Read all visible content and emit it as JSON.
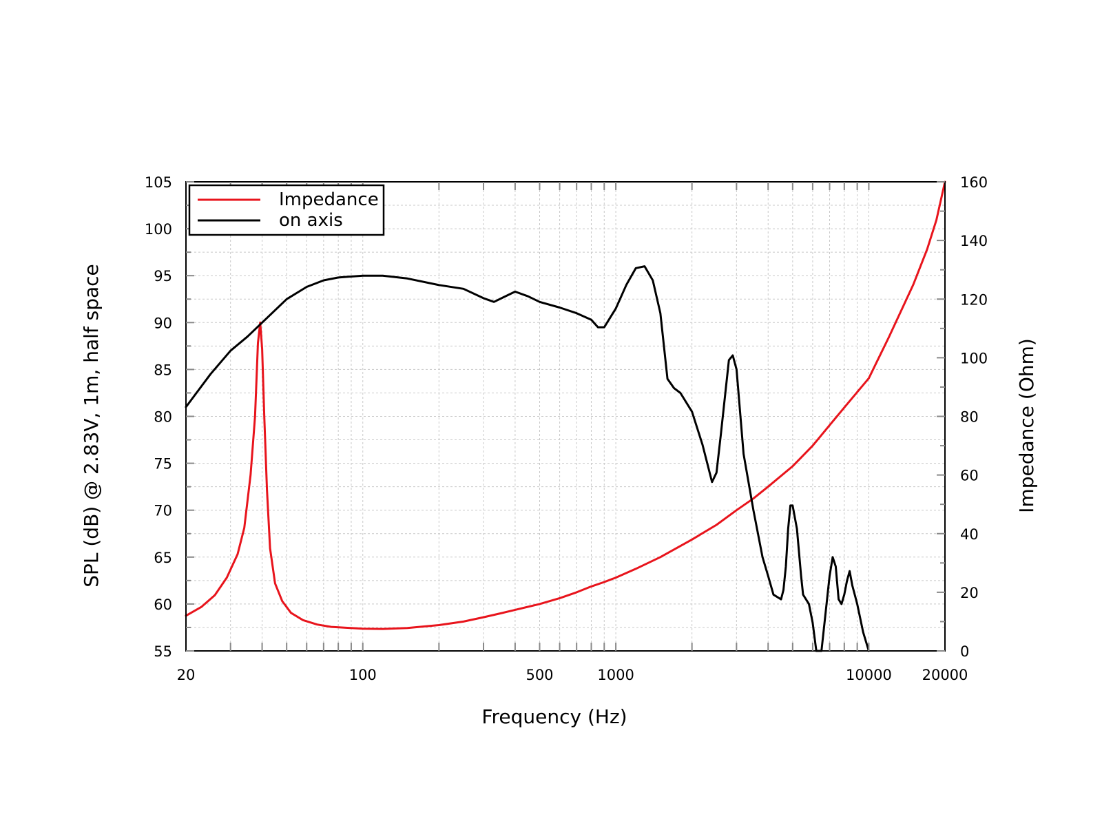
{
  "chart_data": {
    "type": "line",
    "xlabel": "Frequency (Hz)",
    "ylabel": "SPL (dB) @ 2.83V, 1m, half space",
    "y2label": "Impedance (Ohm)",
    "x_scale": "log",
    "xlim": [
      20,
      20000
    ],
    "ylim": [
      55,
      105
    ],
    "y2lim": [
      0,
      160
    ],
    "grid": true,
    "legend_position": "top-left",
    "x_tick_labels": [
      "20",
      "100",
      "500",
      "1000",
      "10000",
      "20000"
    ],
    "x_tick_values": [
      20,
      100,
      500,
      1000,
      10000,
      20000
    ],
    "y_tick_values": [
      55,
      60,
      65,
      70,
      75,
      80,
      85,
      90,
      95,
      100,
      105
    ],
    "y2_tick_values": [
      0,
      20,
      40,
      60,
      80,
      100,
      120,
      140,
      160
    ],
    "series": [
      {
        "name": "Impedance",
        "axis": "right",
        "color": "#e8141c",
        "x": [
          20,
          23,
          26,
          29,
          32,
          34,
          36,
          37.5,
          38.5,
          39.3,
          40,
          40.8,
          41.8,
          43,
          45,
          48,
          52,
          58,
          66,
          75,
          90,
          100,
          120,
          150,
          200,
          250,
          300,
          350,
          400,
          500,
          600,
          700,
          800,
          900,
          1000,
          1200,
          1500,
          2000,
          2500,
          3000,
          3500,
          4000,
          5000,
          6000,
          7000,
          8000,
          10000,
          12000,
          15000,
          17000,
          18500,
          20000
        ],
        "y": [
          12,
          15,
          19,
          25,
          33,
          42,
          60,
          80,
          105,
          112,
          103,
          80,
          55,
          35,
          23,
          17,
          13,
          10.5,
          9,
          8.2,
          7.8,
          7.6,
          7.5,
          7.8,
          8.8,
          10,
          11.5,
          12.8,
          14,
          16,
          18,
          20,
          22,
          23.5,
          25,
          28,
          32,
          38,
          43,
          48,
          52,
          56,
          63,
          70,
          77,
          83,
          93,
          107,
          125,
          137,
          147,
          160
        ]
      },
      {
        "name": "on axis",
        "axis": "left",
        "color": "#000000",
        "x": [
          20,
          22,
          25,
          30,
          35,
          40,
          50,
          60,
          70,
          80,
          100,
          120,
          150,
          200,
          250,
          300,
          330,
          360,
          400,
          450,
          500,
          600,
          700,
          800,
          850,
          900,
          1000,
          1100,
          1200,
          1300,
          1400,
          1500,
          1600,
          1700,
          1800,
          2000,
          2200,
          2400,
          2500,
          2600,
          2800,
          2900,
          3000,
          3200,
          3500,
          3800,
          4000,
          4200,
          4500,
          4600,
          4700,
          4800,
          4900,
          5000,
          5200,
          5400,
          5500,
          5800,
          6000,
          6200,
          6500,
          7000,
          7200,
          7400,
          7600,
          7800,
          8000,
          8200,
          8400,
          8600,
          8800,
          9000,
          9500,
          10000
        ],
        "y": [
          81,
          82.5,
          84.5,
          87,
          88.5,
          90,
          92.5,
          93.8,
          94.5,
          94.8,
          95,
          95,
          94.7,
          94,
          93.6,
          92.6,
          92.2,
          92.7,
          93.3,
          92.8,
          92.2,
          91.6,
          91,
          90.3,
          89.5,
          89.5,
          91.5,
          94,
          95.8,
          96,
          94.5,
          91,
          84,
          83,
          82.5,
          80.5,
          77,
          73,
          74,
          78,
          86,
          86.5,
          85,
          76,
          70,
          65,
          63,
          61,
          60.5,
          61.5,
          64,
          68,
          70.5,
          70.5,
          68,
          63,
          61,
          60,
          58,
          55,
          55,
          63,
          65,
          64,
          60.5,
          60,
          61,
          62.5,
          63.5,
          62,
          61,
          60,
          57,
          55
        ]
      }
    ]
  }
}
